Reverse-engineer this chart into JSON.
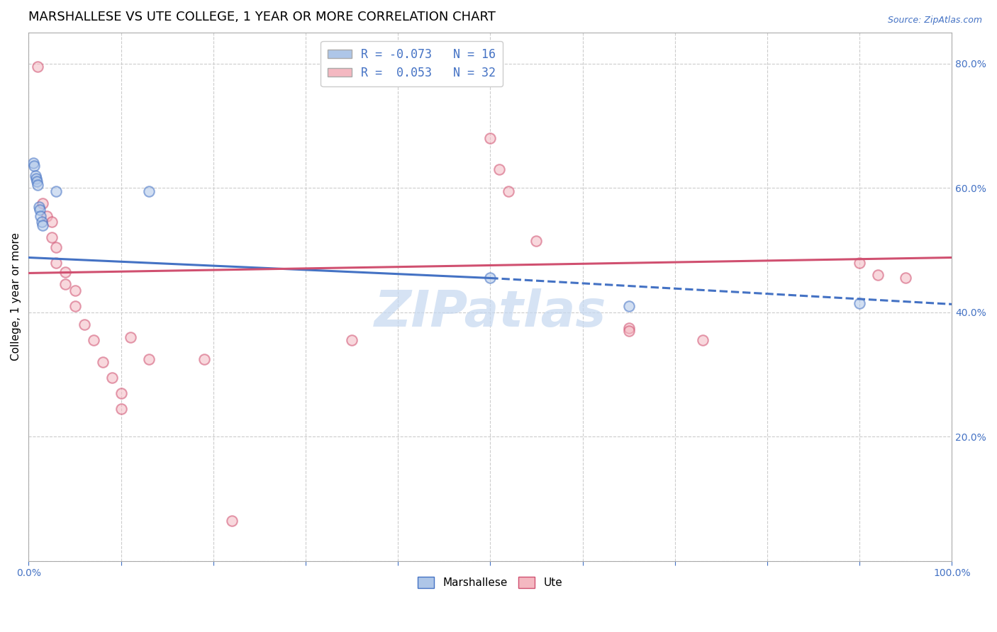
{
  "title": "MARSHALLESE VS UTE COLLEGE, 1 YEAR OR MORE CORRELATION CHART",
  "source": "Source: ZipAtlas.com",
  "ylabel": "College, 1 year or more",
  "xlim": [
    0.0,
    1.0
  ],
  "ylim": [
    0.0,
    0.85
  ],
  "xticks": [
    0.0,
    0.1,
    0.2,
    0.3,
    0.4,
    0.5,
    0.6,
    0.7,
    0.8,
    0.9,
    1.0
  ],
  "xticklabels": [
    "0.0%",
    "",
    "",
    "",
    "",
    "",
    "",
    "",
    "",
    "",
    "100.0%"
  ],
  "yticks": [
    0.0,
    0.2,
    0.4,
    0.6,
    0.8
  ],
  "yticklabels_right": [
    "",
    "20.0%",
    "40.0%",
    "60.0%",
    "80.0%"
  ],
  "legend_entries": [
    {
      "label": "R = -0.073   N = 16",
      "color": "#aec6e8"
    },
    {
      "label": "R =  0.053   N = 32",
      "color": "#f4b8c1"
    }
  ],
  "blue_scatter": [
    [
      0.005,
      0.64
    ],
    [
      0.006,
      0.635
    ],
    [
      0.007,
      0.62
    ],
    [
      0.008,
      0.615
    ],
    [
      0.009,
      0.61
    ],
    [
      0.01,
      0.605
    ],
    [
      0.011,
      0.57
    ],
    [
      0.012,
      0.565
    ],
    [
      0.013,
      0.555
    ],
    [
      0.014,
      0.545
    ],
    [
      0.015,
      0.54
    ],
    [
      0.03,
      0.595
    ],
    [
      0.13,
      0.595
    ],
    [
      0.5,
      0.455
    ],
    [
      0.65,
      0.41
    ],
    [
      0.9,
      0.415
    ]
  ],
  "pink_scatter": [
    [
      0.01,
      0.795
    ],
    [
      0.015,
      0.575
    ],
    [
      0.02,
      0.555
    ],
    [
      0.025,
      0.545
    ],
    [
      0.025,
      0.52
    ],
    [
      0.03,
      0.505
    ],
    [
      0.03,
      0.48
    ],
    [
      0.04,
      0.465
    ],
    [
      0.04,
      0.445
    ],
    [
      0.05,
      0.435
    ],
    [
      0.05,
      0.41
    ],
    [
      0.06,
      0.38
    ],
    [
      0.07,
      0.355
    ],
    [
      0.08,
      0.32
    ],
    [
      0.09,
      0.295
    ],
    [
      0.1,
      0.27
    ],
    [
      0.1,
      0.245
    ],
    [
      0.11,
      0.36
    ],
    [
      0.13,
      0.325
    ],
    [
      0.19,
      0.325
    ],
    [
      0.5,
      0.68
    ],
    [
      0.51,
      0.63
    ],
    [
      0.52,
      0.595
    ],
    [
      0.55,
      0.515
    ],
    [
      0.65,
      0.375
    ],
    [
      0.73,
      0.355
    ],
    [
      0.65,
      0.37
    ],
    [
      0.9,
      0.48
    ],
    [
      0.92,
      0.46
    ],
    [
      0.95,
      0.455
    ],
    [
      0.35,
      0.355
    ],
    [
      0.22,
      0.065
    ]
  ],
  "blue_line_solid": {
    "x": [
      0.0,
      0.5
    ],
    "y_start": 0.488,
    "y_end": 0.455
  },
  "blue_line_dashed": {
    "x": [
      0.5,
      1.0
    ],
    "y_start": 0.455,
    "y_end": 0.413
  },
  "pink_line": {
    "x": [
      0.0,
      1.0
    ],
    "y_start": 0.463,
    "y_end": 0.488
  },
  "blue_scatter_color": "#aec6e8",
  "pink_scatter_color": "#f4b8c1",
  "blue_line_color": "#4472c4",
  "pink_line_color": "#d05070",
  "watermark_text": "ZIPatlas",
  "watermark_color": "#c5d8f0",
  "grid_color": "#cccccc",
  "title_fontsize": 13,
  "label_fontsize": 11,
  "tick_fontsize": 10,
  "scatter_size": 110,
  "scatter_alpha": 0.55,
  "scatter_linewidth": 1.5
}
